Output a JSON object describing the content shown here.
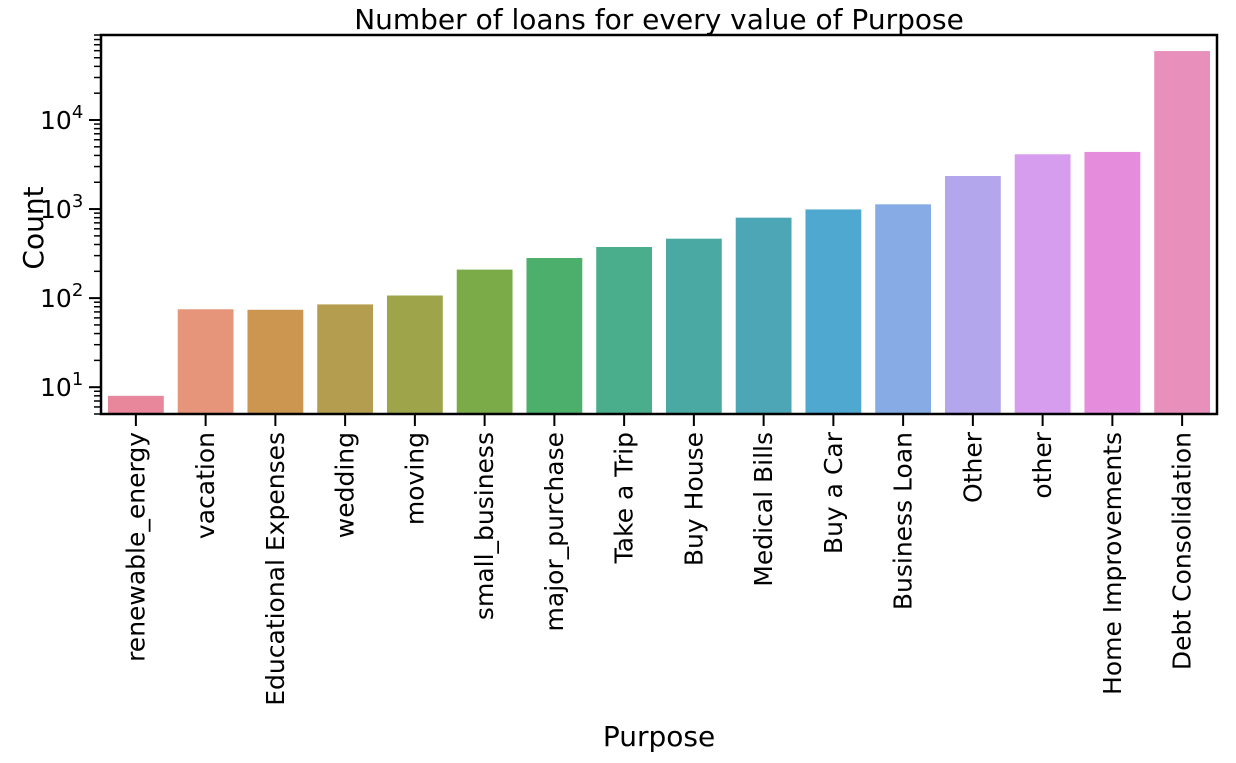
{
  "chart_data": {
    "type": "bar",
    "title": "Number of loans for every value of Purpose",
    "xlabel": "Purpose",
    "ylabel": "Count",
    "yscale": "log",
    "ylim": [
      5,
      90000
    ],
    "y_ticks": [
      10,
      100,
      1000,
      10000
    ],
    "y_tick_labels": [
      {
        "base": "10",
        "exp": "1"
      },
      {
        "base": "10",
        "exp": "2"
      },
      {
        "base": "10",
        "exp": "3"
      },
      {
        "base": "10",
        "exp": "4"
      }
    ],
    "grid": false,
    "categories": [
      "renewable_energy",
      "vacation",
      "Educational Expenses",
      "wedding",
      "moving",
      "small_business",
      "major_purchase",
      "Take a Trip",
      "Buy House",
      "Medical Bills",
      "Buy a Car",
      "Business Loan",
      "Other",
      "other",
      "Home Improvements",
      "Debt Consolidation"
    ],
    "values": [
      8,
      75,
      74,
      85,
      107,
      209,
      282,
      375,
      465,
      800,
      990,
      1130,
      2350,
      4120,
      4380,
      59400
    ],
    "colors": [
      "#e8879c",
      "#e6957b",
      "#cc9650",
      "#b59d4f",
      "#9ea44a",
      "#7aab48",
      "#4daf6c",
      "#4aae8c",
      "#4ba9a3",
      "#4ca6b5",
      "#4ea8cf",
      "#86abe5",
      "#b4a6ec",
      "#d69ced",
      "#e68cdc",
      "#e88fbb"
    ]
  }
}
